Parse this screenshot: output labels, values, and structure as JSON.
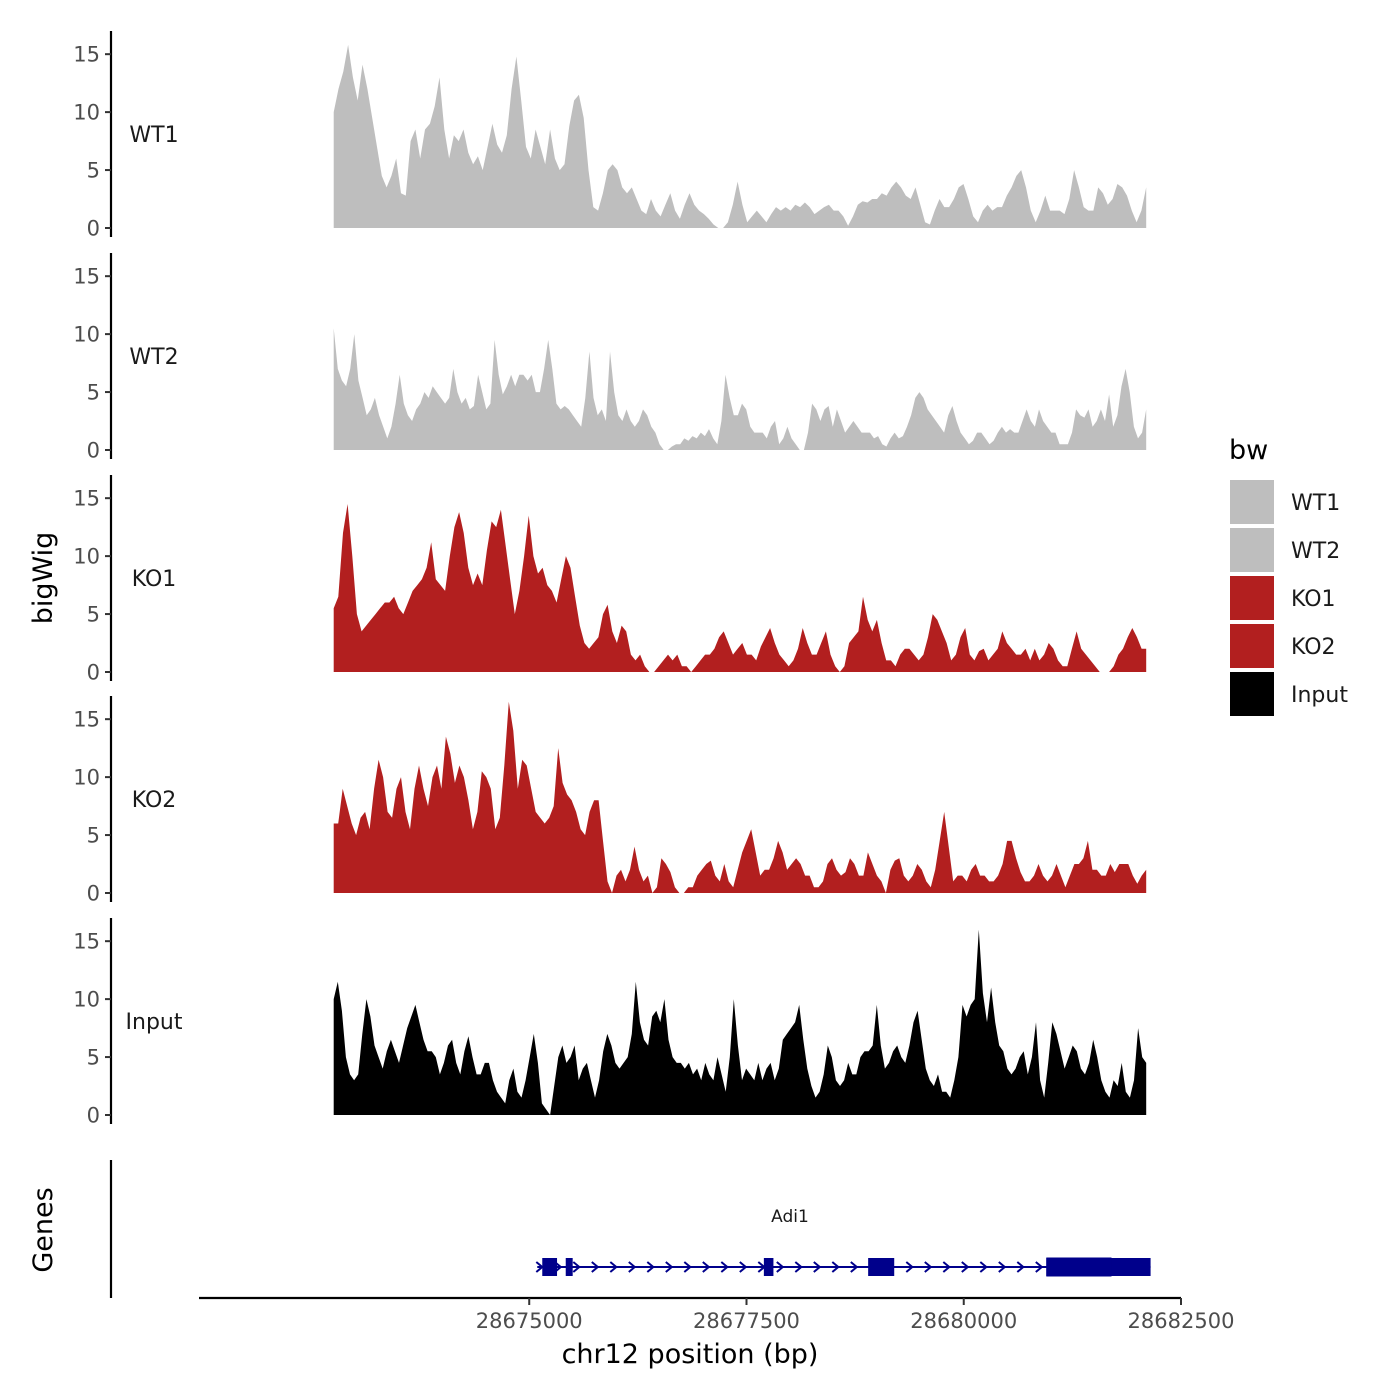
{
  "chart_data": {
    "type": "area",
    "chromosome": "chr12",
    "y_axis_title": "bigWig",
    "x_axis_title": "chr12 position (bp)",
    "x_range": [
      28671200,
      28682500
    ],
    "x_ticks": [
      28675000,
      28677500,
      28680000,
      28682500
    ],
    "x_tick_labels": [
      "28675000",
      "28677500",
      "28680000",
      "28682500"
    ],
    "y_range": [
      0,
      17
    ],
    "y_ticks": [
      0,
      5,
      10,
      15
    ],
    "y_tick_labels": [
      "0",
      "5",
      "10",
      "15"
    ],
    "data_x_range": [
      28672750,
      28682100
    ],
    "legend": {
      "title": "bw",
      "entries": [
        {
          "label": "WT1",
          "color": "#bebebe"
        },
        {
          "label": "WT2",
          "color": "#bebebe"
        },
        {
          "label": "KO1",
          "color": "#b21f1f"
        },
        {
          "label": "KO2",
          "color": "#b21f1f"
        },
        {
          "label": "Input",
          "color": "#000000"
        }
      ]
    },
    "series": [
      {
        "name": "WT1",
        "color": "#bebebe",
        "values": [
          10,
          12,
          13.5,
          15.8,
          13,
          11,
          14.1,
          12,
          9.5,
          7,
          4.5,
          3.5,
          4.5,
          6,
          3,
          2.8,
          7.5,
          8.5,
          6,
          8.5,
          9,
          10.5,
          13,
          8.5,
          6,
          8,
          7.5,
          8.5,
          6.5,
          5.5,
          6.2,
          5,
          7,
          9,
          7.2,
          6.5,
          8,
          12,
          14.8,
          11,
          7,
          6,
          8.5,
          7,
          5.5,
          8.5,
          6,
          5,
          5.5,
          8.8,
          11,
          11.5,
          9.5,
          5,
          1.8,
          1.5,
          3,
          5,
          5.5,
          5,
          3.5,
          3,
          3.5,
          2.5,
          1.5,
          1.2,
          2.5,
          1.5,
          1,
          2,
          3,
          1.5,
          0.8,
          2,
          3,
          2,
          1.5,
          1.2,
          0.8,
          0.3,
          0,
          0,
          0.5,
          2,
          4,
          2,
          0.5,
          1,
          1.5,
          1,
          0.5,
          1.2,
          1.8,
          1.5,
          1.8,
          1.5,
          2,
          1.8,
          2.2,
          1.8,
          1.2,
          1.5,
          1.8,
          2,
          1.5,
          1.5,
          1,
          0.2,
          1,
          2,
          2.3,
          2.2,
          2.5,
          2.5,
          3,
          2.8,
          3.5,
          4,
          3.5,
          2.8,
          2.5,
          3.5,
          2,
          0.5,
          0.3,
          1.5,
          2.5,
          1.8,
          1.8,
          2.5,
          3.5,
          3.8,
          2.5,
          1,
          0.5,
          1.5,
          2,
          1.5,
          1.8,
          1.8,
          2.8,
          3.5,
          4.5,
          5,
          3.5,
          1.5,
          0.5,
          1.5,
          2.8,
          1.5,
          1.5,
          1.5,
          1.2,
          2.5,
          5,
          3.5,
          1.8,
          1.5,
          1.5,
          3.5,
          3,
          2,
          2.5,
          3.8,
          3.5,
          2.8,
          1.5,
          0.5,
          1.5,
          3.5
        ]
      },
      {
        "name": "WT2",
        "color": "#bebebe",
        "values": [
          10.5,
          7,
          6,
          5.5,
          7,
          10,
          6,
          4.5,
          3,
          3.5,
          4.5,
          3,
          2,
          1,
          2,
          4,
          6.5,
          4,
          3,
          2.5,
          3.5,
          4,
          5,
          4.5,
          5.5,
          5,
          4.5,
          4,
          4.5,
          7,
          5,
          4,
          4.5,
          3.5,
          3.8,
          6.5,
          5,
          3.5,
          4,
          9.5,
          6.5,
          4.8,
          5.5,
          6.5,
          5.5,
          6.5,
          6.5,
          6,
          6.5,
          5,
          5,
          7,
          9.5,
          7,
          4,
          3.5,
          3.8,
          3.5,
          3,
          2.5,
          2,
          4.5,
          8.5,
          4.5,
          3,
          3.5,
          2.5,
          8.5,
          5,
          3,
          2.5,
          3.5,
          2.5,
          2,
          2.5,
          3.5,
          3,
          2,
          1.5,
          0.5,
          0,
          0,
          0.3,
          0.5,
          0.5,
          1,
          0.8,
          1.2,
          1,
          1.5,
          1.2,
          1.8,
          1,
          0.5,
          2.5,
          6.5,
          4.5,
          3,
          3,
          4,
          3.5,
          2,
          1.5,
          1.5,
          1.5,
          1,
          2,
          2.5,
          0.5,
          1,
          2,
          1,
          0.5,
          0,
          0,
          1.5,
          4,
          3.5,
          2.5,
          3.5,
          3.8,
          2,
          3.5,
          2.5,
          1.5,
          2,
          2.5,
          2,
          1.5,
          1.5,
          1.5,
          1,
          1.2,
          0.5,
          0.3,
          1,
          1.5,
          1,
          1.2,
          2,
          3,
          4.5,
          5,
          4.5,
          3.5,
          3,
          2.5,
          2,
          1.5,
          3,
          3.8,
          2.5,
          1.5,
          1,
          0.5,
          0.8,
          1.5,
          1.5,
          1,
          0.5,
          0.8,
          1.5,
          2,
          1.5,
          1.8,
          1.5,
          1.5,
          2.5,
          3.5,
          2.5,
          2,
          3.5,
          2.5,
          2,
          1.5,
          1.5,
          0.5,
          0.5,
          0.5,
          1.5,
          3.5,
          3,
          2.8,
          3.5,
          2,
          2.5,
          3.5,
          2.5,
          4.8,
          2,
          3,
          5.5,
          7,
          5,
          2,
          1,
          1.5,
          3.5
        ]
      },
      {
        "name": "KO1",
        "color": "#b21f1f",
        "values": [
          5.5,
          6.5,
          12,
          14.5,
          10,
          5,
          3.5,
          4,
          4.5,
          5,
          5.5,
          6,
          6,
          6.5,
          5.5,
          5,
          6,
          7,
          7.5,
          8,
          9,
          11.2,
          8,
          7.5,
          7,
          10,
          12.5,
          13.8,
          12,
          9,
          7.5,
          8.5,
          7.5,
          10.5,
          13,
          12.5,
          14,
          11,
          8,
          5,
          7,
          10,
          13.5,
          10,
          8.5,
          9,
          7.5,
          7,
          6,
          8,
          10,
          9,
          6.5,
          4,
          2.5,
          2,
          2.5,
          3,
          5,
          5.8,
          3.5,
          2.5,
          4,
          3.5,
          1.5,
          1,
          1.5,
          0.5,
          0,
          0,
          0.5,
          1,
          1.5,
          1,
          1.5,
          0.5,
          0.5,
          0,
          0.5,
          1,
          1.5,
          1.5,
          2,
          3,
          3.5,
          2.5,
          1.5,
          2,
          2.5,
          1.5,
          1.5,
          1,
          2.2,
          3,
          3.8,
          2.5,
          1.5,
          1,
          0.5,
          1,
          2,
          3.8,
          2.5,
          1.5,
          1.5,
          2.5,
          3.5,
          1.5,
          0.5,
          0,
          0.5,
          2.5,
          3,
          3.5,
          6.5,
          4.5,
          3.5,
          4.5,
          2.5,
          1,
          1,
          0.5,
          1.5,
          2,
          2,
          1.5,
          1,
          1.5,
          3,
          5,
          4.5,
          3.5,
          2.5,
          1,
          1.5,
          3,
          3.8,
          1.5,
          1,
          1.8,
          2,
          1,
          1.5,
          2,
          3.5,
          2.5,
          2,
          1.5,
          1.5,
          2,
          1,
          2,
          1,
          1.5,
          2.5,
          2,
          1,
          0.5,
          0.5,
          2,
          3.5,
          2,
          1.5,
          1,
          0.5,
          0,
          0,
          0,
          0.5,
          1.5,
          2,
          3,
          3.8,
          3,
          2,
          2
        ]
      },
      {
        "name": "KO2",
        "color": "#b21f1f",
        "values": [
          6,
          6,
          9,
          7.5,
          6,
          5,
          6.5,
          7,
          5.5,
          9,
          11.5,
          10,
          7,
          6.5,
          9,
          10,
          7,
          5.5,
          9,
          11,
          9,
          7.5,
          10,
          11,
          9,
          13.5,
          12,
          9.5,
          11,
          10,
          8,
          5.5,
          7,
          10.5,
          10,
          9,
          5.5,
          6.5,
          11,
          16.5,
          14,
          9,
          11.5,
          11,
          9,
          7,
          6.5,
          6,
          6.5,
          7.5,
          12.5,
          9.5,
          8.5,
          8,
          7,
          5.5,
          5,
          7,
          8,
          8,
          4.5,
          1,
          0,
          1.5,
          2,
          1,
          2,
          4,
          2,
          1,
          1.5,
          0,
          0.5,
          3,
          2.5,
          1.8,
          0.5,
          0,
          0,
          0.5,
          0.5,
          1.5,
          2,
          2.5,
          2.8,
          1.5,
          1,
          2.5,
          1,
          0.5,
          2,
          3.5,
          4.5,
          5.5,
          3.5,
          1.5,
          2,
          2,
          3,
          4.5,
          3.5,
          2,
          2.5,
          3,
          2.5,
          1.5,
          1.5,
          0.5,
          0.5,
          1,
          2.5,
          3,
          2,
          1.5,
          1.8,
          3,
          2.5,
          1.5,
          1.5,
          3.5,
          2.5,
          1.5,
          1,
          0,
          2,
          2.8,
          3,
          1.5,
          1,
          1.5,
          2.5,
          2,
          1,
          0.5,
          2,
          4.5,
          7,
          4,
          1,
          1.5,
          1.5,
          1,
          2,
          2.5,
          1.5,
          1.5,
          1,
          1,
          1.5,
          2.5,
          4.5,
          4.5,
          3,
          1.8,
          1,
          1,
          1.5,
          2.5,
          1.5,
          1,
          1.5,
          2.5,
          1.5,
          0.5,
          1.5,
          2.5,
          2.5,
          3,
          4.5,
          2,
          2,
          1.5,
          1.5,
          2.5,
          1.8,
          2.5,
          2.5,
          2.5,
          1.5,
          0.8,
          1.5,
          2
        ]
      },
      {
        "name": "Input",
        "color": "#000000",
        "values": [
          10,
          11.5,
          9,
          5,
          3.5,
          3,
          3.5,
          7,
          10,
          8.5,
          6,
          5,
          4,
          5.5,
          6.5,
          5.5,
          4.5,
          6,
          7.5,
          8.5,
          9.5,
          8,
          6.5,
          5.5,
          5.5,
          5,
          3.5,
          4.5,
          6,
          6.5,
          4.5,
          3.5,
          5.5,
          6.8,
          5,
          3.5,
          3.5,
          4.5,
          4.5,
          3,
          2,
          1.5,
          1,
          3,
          4,
          2,
          1.5,
          3,
          5,
          7,
          4.5,
          1,
          0.5,
          0,
          2.5,
          5,
          6,
          4.5,
          5,
          6,
          3,
          4,
          4.5,
          3,
          1.5,
          3,
          5.5,
          7,
          6,
          4.5,
          4,
          4.5,
          5,
          7,
          11.5,
          8,
          6.5,
          6,
          8.5,
          9,
          8,
          10,
          6.5,
          5,
          4.5,
          4.5,
          4,
          4.5,
          3.5,
          4,
          3,
          4.5,
          3.5,
          3,
          5,
          3.5,
          2,
          5,
          10,
          6,
          3,
          4,
          3.5,
          3,
          4.5,
          3,
          4,
          4.5,
          3,
          4,
          6.5,
          7,
          7.5,
          8,
          9.5,
          6.5,
          4,
          2.5,
          1.5,
          2,
          3.5,
          6,
          5,
          3,
          2.5,
          3,
          4.5,
          3.5,
          3.5,
          5,
          5.5,
          5.5,
          6,
          9.5,
          6,
          4,
          4.5,
          5.5,
          6,
          5,
          4.5,
          6,
          8,
          9,
          6.5,
          4,
          3,
          2.5,
          3.5,
          2,
          2,
          1.5,
          3,
          5,
          9.5,
          8.5,
          9.5,
          10,
          16,
          10.5,
          8,
          11,
          8,
          6,
          5.5,
          4,
          3.5,
          4,
          5,
          5.5,
          3.5,
          5,
          8,
          3,
          1.5,
          4.5,
          8,
          7,
          5.5,
          4,
          5,
          6,
          5.5,
          4,
          3.5,
          4.5,
          6.5,
          5,
          3,
          2,
          1.5,
          3,
          2.5,
          4.5,
          2,
          1.5,
          3,
          7.5,
          5,
          4.5
        ]
      }
    ],
    "genes_track": {
      "label": "Genes",
      "gene_name": "Adi1",
      "color": "#00008b",
      "strand": "+",
      "span_bp": [
        28675150,
        28682150
      ],
      "exons_bp": [
        [
          28675150,
          28675320
        ],
        [
          28675420,
          28675500
        ],
        [
          28677700,
          28677810
        ],
        [
          28678900,
          28679200
        ],
        [
          28680950,
          28682150
        ]
      ],
      "thick_exon_bp": [
        [
          28680950,
          28681700
        ]
      ]
    }
  }
}
